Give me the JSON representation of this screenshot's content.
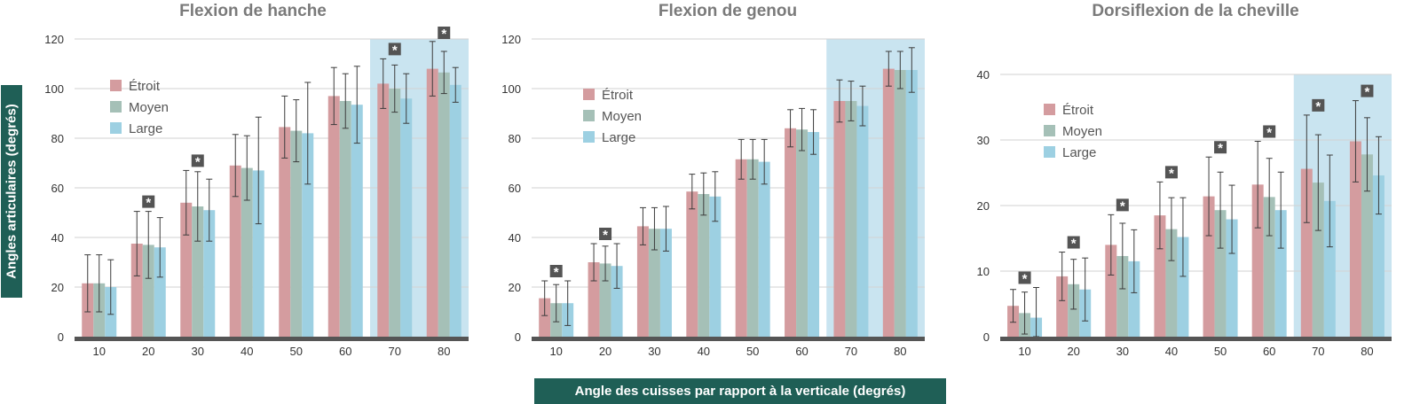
{
  "colors": {
    "etroit": "#d49c9f",
    "moyen": "#a5c0b7",
    "large": "#9dd0e2",
    "highlight": "#c9e4f0",
    "axis": "#555555",
    "label_bg": "#1f5f56",
    "title": "#7a7a7a"
  },
  "y_axis_label": "Angles articulaires (degrés)",
  "x_axis_label": "Angle des cuisses par rapport à la verticale (degrés)",
  "significance_marker": "*",
  "chart_data": [
    {
      "type": "bar",
      "title": "Flexion de hanche",
      "categories": [
        "10",
        "20",
        "30",
        "40",
        "50",
        "60",
        "70",
        "80"
      ],
      "ylim": [
        0,
        120
      ],
      "yticks": [
        "0",
        "20",
        "40",
        "60",
        "80",
        "100",
        "120"
      ],
      "grid": true,
      "legend": "left",
      "highlight_categories": [
        "70",
        "80"
      ],
      "significant_categories": [
        "20",
        "30",
        "70",
        "80"
      ],
      "series": [
        {
          "name": "Étroit",
          "values": [
            21.5,
            37.5,
            54,
            69,
            84.5,
            97,
            102,
            108
          ],
          "errors": [
            11.5,
            13,
            13,
            12.5,
            12.5,
            11.5,
            10,
            11
          ]
        },
        {
          "name": "Moyen",
          "values": [
            21.5,
            37,
            52.5,
            68,
            83,
            95,
            100,
            106.5
          ],
          "errors": [
            11.5,
            13.5,
            14,
            13,
            12.5,
            11,
            9.5,
            8.5
          ]
        },
        {
          "name": "Large",
          "values": [
            20,
            36,
            51,
            67,
            82,
            93.5,
            96,
            101.5
          ],
          "errors": [
            11,
            12,
            12.5,
            21.5,
            20.5,
            15.5,
            10,
            7
          ]
        }
      ]
    },
    {
      "type": "bar",
      "title": "Flexion de genou",
      "categories": [
        "10",
        "20",
        "30",
        "40",
        "50",
        "60",
        "70",
        "80"
      ],
      "ylim": [
        0,
        120
      ],
      "yticks": [
        "0",
        "20",
        "40",
        "60",
        "80",
        "100",
        "120"
      ],
      "grid": true,
      "legend": "left",
      "highlight_categories": [
        "70",
        "80"
      ],
      "significant_categories": [
        "10",
        "20"
      ],
      "series": [
        {
          "name": "Étroit",
          "values": [
            15.5,
            30,
            44.5,
            58.5,
            71.5,
            84,
            95,
            108
          ],
          "errors": [
            7,
            7.5,
            7.5,
            7,
            8,
            7.5,
            8.5,
            7
          ]
        },
        {
          "name": "Moyen",
          "values": [
            13.5,
            29.5,
            43.5,
            57.5,
            71.5,
            83.5,
            95,
            107.5
          ],
          "errors": [
            7.5,
            7,
            8.5,
            8.5,
            8,
            8.5,
            8,
            7.5
          ]
        },
        {
          "name": "Large",
          "values": [
            13.5,
            28.5,
            43.5,
            56.5,
            70.5,
            82.5,
            93,
            107.5
          ],
          "errors": [
            9,
            9,
            9,
            10,
            9,
            9,
            8,
            9
          ]
        }
      ]
    },
    {
      "type": "bar",
      "title": "Dorsiflexion de la cheville",
      "categories": [
        "10",
        "20",
        "30",
        "40",
        "50",
        "60",
        "70",
        "80"
      ],
      "ylim": [
        0,
        40
      ],
      "yticks": [
        "0",
        "10",
        "20",
        "30",
        "40"
      ],
      "grid": true,
      "legend": "left",
      "highlight_categories": [
        "70",
        "80"
      ],
      "significant_categories": [
        "10",
        "20",
        "30",
        "40",
        "50",
        "60",
        "70",
        "80"
      ],
      "series": [
        {
          "name": "Étroit",
          "values": [
            4.7,
            9.2,
            14,
            18.5,
            21.4,
            23.2,
            25.6,
            29.8
          ],
          "errors": [
            2.5,
            3.7,
            4.6,
            5.1,
            6,
            6.6,
            8.2,
            6.2
          ]
        },
        {
          "name": "Moyen",
          "values": [
            3.6,
            8,
            12.3,
            16.4,
            19.3,
            21.3,
            23.5,
            27.8
          ],
          "errors": [
            3.2,
            3.8,
            5,
            4.8,
            5.8,
            5.9,
            7.3,
            5.6
          ]
        },
        {
          "name": "Large",
          "values": [
            2.9,
            7.2,
            11.5,
            15.2,
            17.9,
            19.3,
            20.7,
            24.6
          ],
          "errors": [
            4.6,
            4.8,
            4.8,
            6,
            5.2,
            5.8,
            7,
            5.9
          ]
        }
      ]
    }
  ]
}
